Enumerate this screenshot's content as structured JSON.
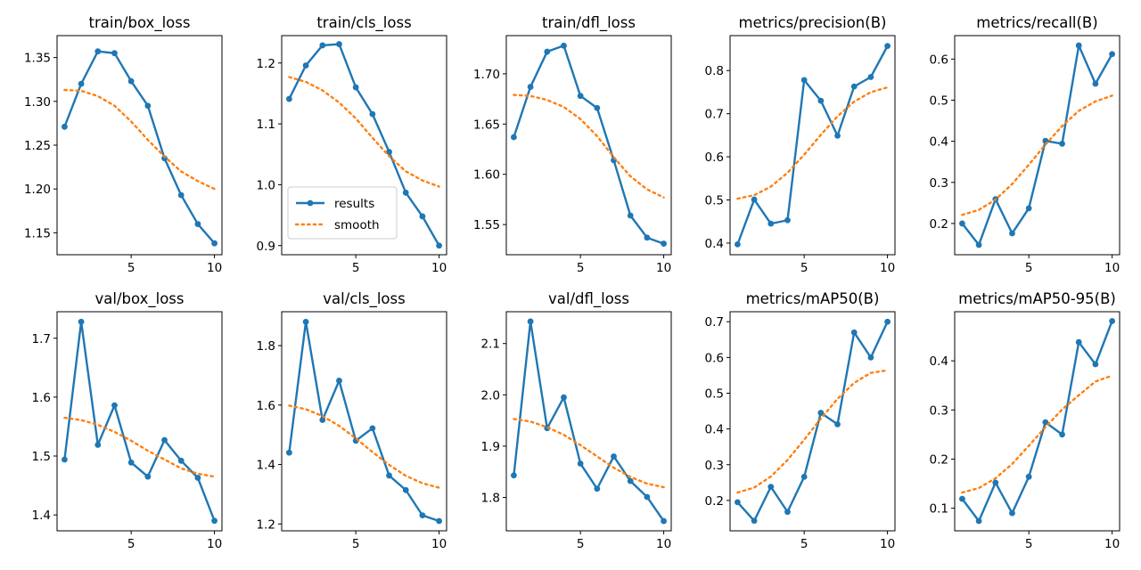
{
  "legend": {
    "results_label": "results",
    "smooth_label": "smooth"
  },
  "colors": {
    "results": "#1f77b4",
    "smooth": "#ff7f0e",
    "axis": "#000000",
    "background": "#ffffff"
  },
  "chart_data": [
    {
      "type": "line",
      "title": "train/box_loss",
      "x": [
        1,
        2,
        3,
        4,
        5,
        6,
        7,
        8,
        9,
        10
      ],
      "values": [
        1.271,
        1.32,
        1.357,
        1.355,
        1.323,
        1.295,
        1.235,
        1.193,
        1.16,
        1.138
      ],
      "smooth": [
        1.313,
        1.312,
        1.306,
        1.295,
        1.277,
        1.256,
        1.237,
        1.22,
        1.209,
        1.2
      ],
      "ylim": [
        1.125,
        1.375
      ],
      "yticks": [
        "1.15",
        "1.20",
        "1.25",
        "1.30",
        "1.35"
      ],
      "xticks": [
        "5",
        "10"
      ],
      "xlim": [
        0.55,
        10.45
      ]
    },
    {
      "type": "line",
      "title": "train/cls_loss",
      "x": [
        1,
        2,
        3,
        4,
        5,
        6,
        7,
        8,
        9,
        10
      ],
      "values": [
        1.141,
        1.196,
        1.229,
        1.231,
        1.16,
        1.116,
        1.054,
        0.987,
        0.948,
        0.9
      ],
      "smooth": [
        1.177,
        1.169,
        1.155,
        1.135,
        1.109,
        1.077,
        1.047,
        1.022,
        1.007,
        0.997
      ],
      "ylim": [
        0.885,
        1.245
      ],
      "yticks": [
        "0.9",
        "1.0",
        "1.1",
        "1.2"
      ],
      "xticks": [
        "5",
        "10"
      ],
      "xlim": [
        0.55,
        10.45
      ],
      "legend": "lower-left"
    },
    {
      "type": "line",
      "title": "train/dfl_loss",
      "x": [
        1,
        2,
        3,
        4,
        5,
        6,
        7,
        8,
        9,
        10
      ],
      "values": [
        1.637,
        1.687,
        1.722,
        1.728,
        1.678,
        1.666,
        1.614,
        1.559,
        1.537,
        1.531
      ],
      "smooth": [
        1.679,
        1.678,
        1.674,
        1.667,
        1.655,
        1.638,
        1.617,
        1.598,
        1.585,
        1.577
      ],
      "ylim": [
        1.52,
        1.738
      ],
      "yticks": [
        "1.55",
        "1.60",
        "1.65",
        "1.70"
      ],
      "xticks": [
        "5",
        "10"
      ],
      "xlim": [
        0.55,
        10.45
      ]
    },
    {
      "type": "line",
      "title": "metrics/precision(B)",
      "x": [
        1,
        2,
        3,
        4,
        5,
        6,
        7,
        8,
        9,
        10
      ],
      "values": [
        0.397,
        0.501,
        0.445,
        0.453,
        0.778,
        0.73,
        0.649,
        0.763,
        0.785,
        0.857
      ],
      "smooth": [
        0.503,
        0.511,
        0.531,
        0.563,
        0.605,
        0.651,
        0.694,
        0.728,
        0.75,
        0.761
      ],
      "ylim": [
        0.373,
        0.881
      ],
      "yticks": [
        "0.4",
        "0.5",
        "0.6",
        "0.7",
        "0.8"
      ],
      "xticks": [
        "5",
        "10"
      ],
      "xlim": [
        0.55,
        10.45
      ]
    },
    {
      "type": "line",
      "title": "metrics/recall(B)",
      "x": [
        1,
        2,
        3,
        4,
        5,
        6,
        7,
        8,
        9,
        10
      ],
      "values": [
        0.2,
        0.148,
        0.259,
        0.176,
        0.237,
        0.401,
        0.394,
        0.633,
        0.54,
        0.612
      ],
      "smooth": [
        0.221,
        0.233,
        0.258,
        0.296,
        0.343,
        0.392,
        0.437,
        0.474,
        0.497,
        0.511
      ],
      "ylim": [
        0.124,
        0.657
      ],
      "yticks": [
        "0.2",
        "0.3",
        "0.4",
        "0.5",
        "0.6"
      ],
      "xticks": [
        "5",
        "10"
      ],
      "xlim": [
        0.55,
        10.45
      ]
    },
    {
      "type": "line",
      "title": "val/box_loss",
      "x": [
        1,
        2,
        3,
        4,
        5,
        6,
        7,
        8,
        9,
        10
      ],
      "values": [
        1.494,
        1.728,
        1.519,
        1.586,
        1.489,
        1.465,
        1.527,
        1.492,
        1.463,
        1.39
      ],
      "smooth": [
        1.565,
        1.561,
        1.553,
        1.541,
        1.526,
        1.509,
        1.494,
        1.479,
        1.47,
        1.465
      ],
      "ylim": [
        1.373,
        1.745
      ],
      "yticks": [
        "1.4",
        "1.5",
        "1.6",
        "1.7"
      ],
      "xticks": [
        "5",
        "10"
      ],
      "xlim": [
        0.55,
        10.45
      ]
    },
    {
      "type": "line",
      "title": "val/cls_loss",
      "x": [
        1,
        2,
        3,
        4,
        5,
        6,
        7,
        8,
        9,
        10
      ],
      "values": [
        1.44,
        1.88,
        1.55,
        1.682,
        1.48,
        1.522,
        1.363,
        1.314,
        1.229,
        1.21
      ],
      "smooth": [
        1.598,
        1.586,
        1.563,
        1.53,
        1.488,
        1.442,
        1.399,
        1.362,
        1.337,
        1.322
      ],
      "ylim": [
        1.177,
        1.914
      ],
      "yticks": [
        "1.2",
        "1.4",
        "1.6",
        "1.8"
      ],
      "xticks": [
        "5",
        "10"
      ],
      "xlim": [
        0.55,
        10.45
      ]
    },
    {
      "type": "line",
      "title": "val/dfl_loss",
      "x": [
        1,
        2,
        3,
        4,
        5,
        6,
        7,
        8,
        9,
        10
      ],
      "values": [
        1.843,
        2.143,
        1.935,
        1.995,
        1.866,
        1.817,
        1.88,
        1.832,
        1.801,
        1.754
      ],
      "smooth": [
        1.953,
        1.948,
        1.937,
        1.922,
        1.902,
        1.88,
        1.858,
        1.84,
        1.827,
        1.82
      ],
      "ylim": [
        1.735,
        2.162
      ],
      "yticks": [
        "1.8",
        "1.9",
        "2.0",
        "2.1"
      ],
      "xticks": [
        "5",
        "10"
      ],
      "xlim": [
        0.55,
        10.45
      ]
    },
    {
      "type": "line",
      "title": "metrics/mAP50(B)",
      "x": [
        1,
        2,
        3,
        4,
        5,
        6,
        7,
        8,
        9,
        10
      ],
      "values": [
        0.195,
        0.143,
        0.238,
        0.168,
        0.266,
        0.445,
        0.413,
        0.67,
        0.6,
        0.7
      ],
      "smooth": [
        0.222,
        0.236,
        0.267,
        0.313,
        0.37,
        0.429,
        0.484,
        0.529,
        0.557,
        0.564
      ],
      "ylim": [
        0.115,
        0.728
      ],
      "yticks": [
        "0.2",
        "0.3",
        "0.4",
        "0.5",
        "0.6",
        "0.7"
      ],
      "xticks": [
        "5",
        "10"
      ],
      "xlim": [
        0.55,
        10.45
      ]
    },
    {
      "type": "line",
      "title": "metrics/mAP50-95(B)",
      "x": [
        1,
        2,
        3,
        4,
        5,
        6,
        7,
        8,
        9,
        10
      ],
      "values": [
        0.119,
        0.074,
        0.152,
        0.09,
        0.164,
        0.275,
        0.25,
        0.438,
        0.393,
        0.481
      ],
      "smooth": [
        0.132,
        0.141,
        0.161,
        0.19,
        0.227,
        0.265,
        0.301,
        0.33,
        0.358,
        0.37
      ],
      "ylim": [
        0.054,
        0.5
      ],
      "yticks": [
        "0.1",
        "0.2",
        "0.3",
        "0.4"
      ],
      "xticks": [
        "5",
        "10"
      ],
      "xlim": [
        0.55,
        10.45
      ]
    }
  ]
}
